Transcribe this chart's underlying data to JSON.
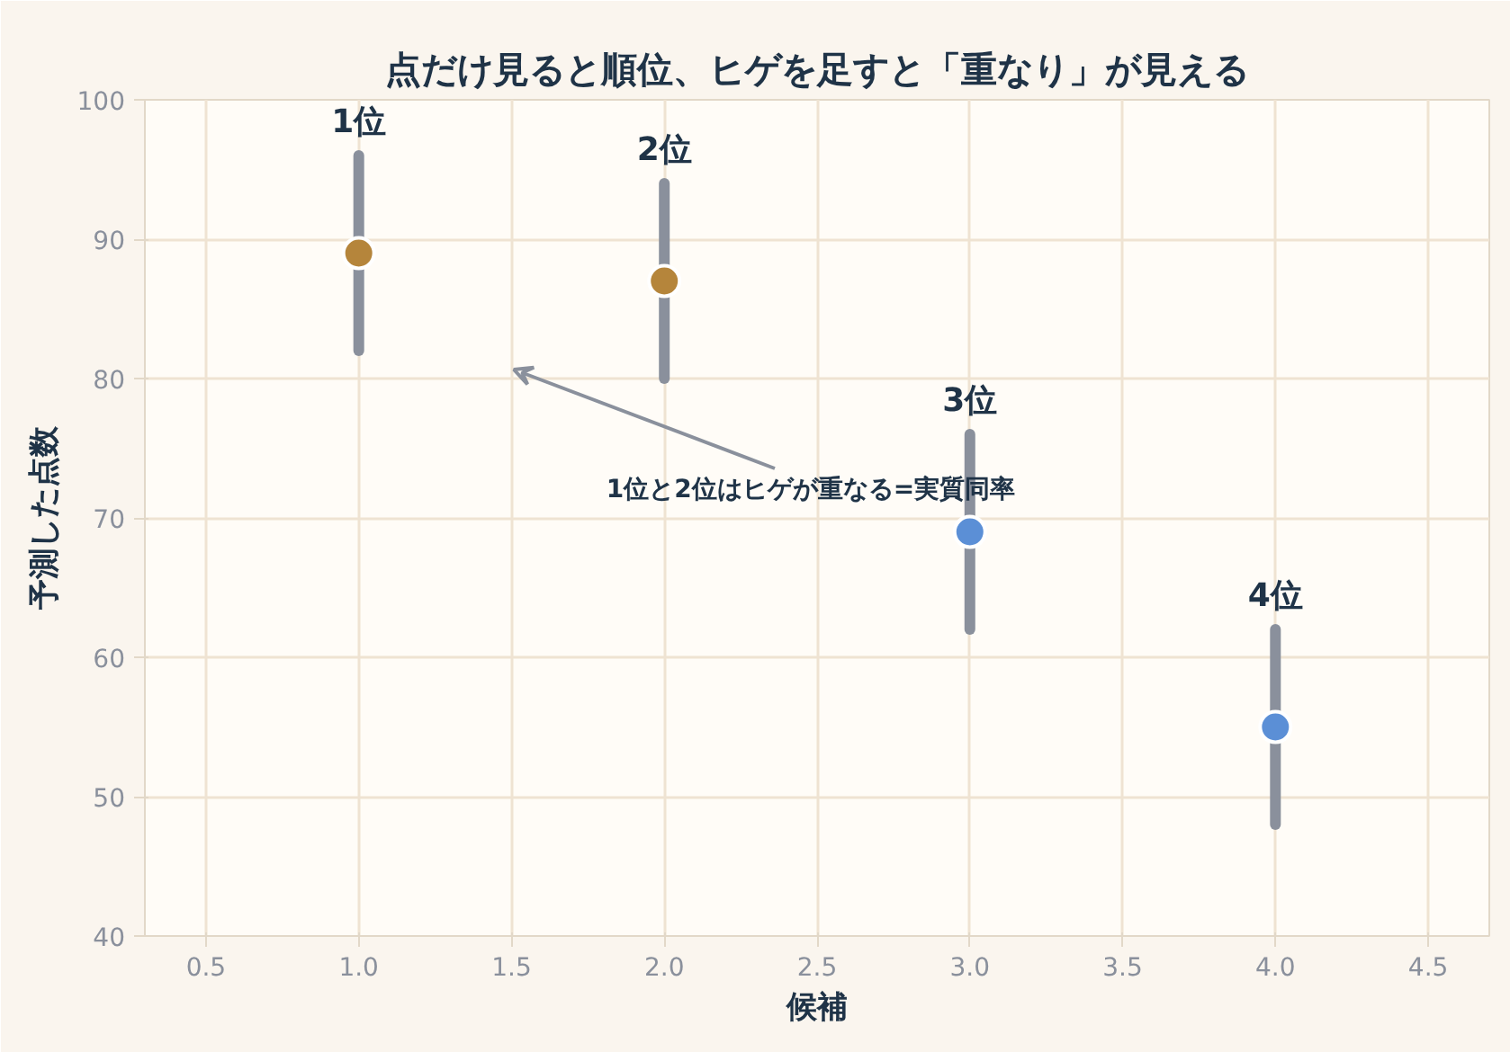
{
  "chart_data": {
    "type": "scatter",
    "title": "点だけ見ると順位、ヒゲを足すと「重なり」が見える",
    "xlabel": "候補",
    "ylabel": "予測した点数",
    "x": [
      1,
      2,
      3,
      4
    ],
    "values": [
      89,
      87,
      69,
      55
    ],
    "errors": [
      7,
      7,
      7,
      7
    ],
    "colors": [
      "#b5853b",
      "#b5853b",
      "#5b8fd6",
      "#5b8fd6"
    ],
    "xlim": [
      0.3,
      4.7
    ],
    "xticks": [
      0.5,
      {
        "value": 1,
        "label": "1.0"
      },
      1.5,
      {
        "value": 2,
        "label": "2.0"
      },
      2.5,
      {
        "value": 3,
        "label": "3.0"
      },
      3.5,
      {
        "value": 4,
        "label": "4.0"
      },
      4.5
    ],
    "ylim": [
      40,
      100
    ],
    "yticks": [
      40,
      50,
      60,
      70,
      80,
      90,
      100
    ],
    "grid": true,
    "marker": "circle",
    "annotations": [
      {
        "text": "1位",
        "x": 1,
        "y": 96
      },
      {
        "text": "2位",
        "x": 2,
        "y": 94
      },
      {
        "text": "3位",
        "x": 3,
        "y": 76
      },
      {
        "text": "4位",
        "x": 4,
        "y": 62
      },
      "1位と2位はヒゲが重なる=実質同率"
    ]
  }
}
